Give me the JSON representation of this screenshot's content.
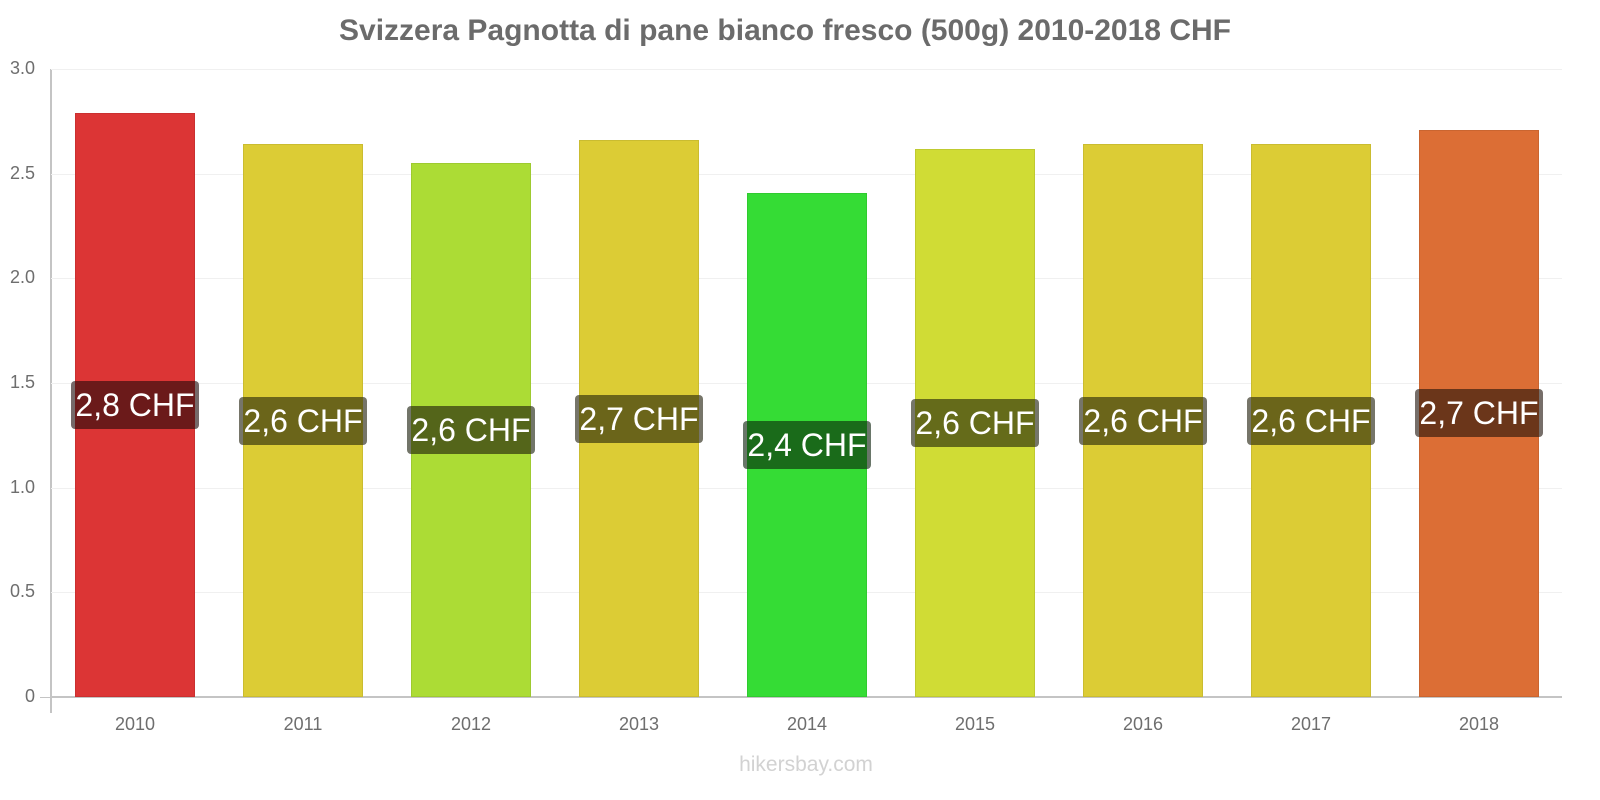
{
  "chart_data": {
    "type": "bar",
    "title": "Svizzera Pagnotta di pane bianco fresco (500g) 2010-2018 CHF",
    "xlabel": "",
    "ylabel": "",
    "ylim": [
      0,
      3.0
    ],
    "yticks": [
      "0",
      "0.5",
      "1.0",
      "1.5",
      "2.0",
      "2.5",
      "3.0"
    ],
    "grid": true,
    "legend": "none",
    "categories": [
      "2010",
      "2011",
      "2012",
      "2013",
      "2014",
      "2015",
      "2016",
      "2017",
      "2018"
    ],
    "values": [
      2.79,
      2.64,
      2.55,
      2.66,
      2.41,
      2.62,
      2.64,
      2.64,
      2.71
    ],
    "data_labels": [
      "2,8 CHF",
      "2,6 CHF",
      "2,6 CHF",
      "2,7 CHF",
      "2,4 CHF",
      "2,6 CHF",
      "2,6 CHF",
      "2,6 CHF",
      "2,7 CHF"
    ],
    "bar_colors": [
      "#dc3535",
      "#dccc35",
      "#acdc35",
      "#dccc35",
      "#35dc35",
      "#d0dc35",
      "#dccc35",
      "#dccc35",
      "#dc6e35"
    ],
    "label_colors": [
      "#6b1a1a",
      "#6b651a",
      "#54651a",
      "#6b651a",
      "#1a6b1a",
      "#656b1a",
      "#6b651a",
      "#6b651a",
      "#6b361a"
    ]
  },
  "watermark": "hikersbay.com"
}
